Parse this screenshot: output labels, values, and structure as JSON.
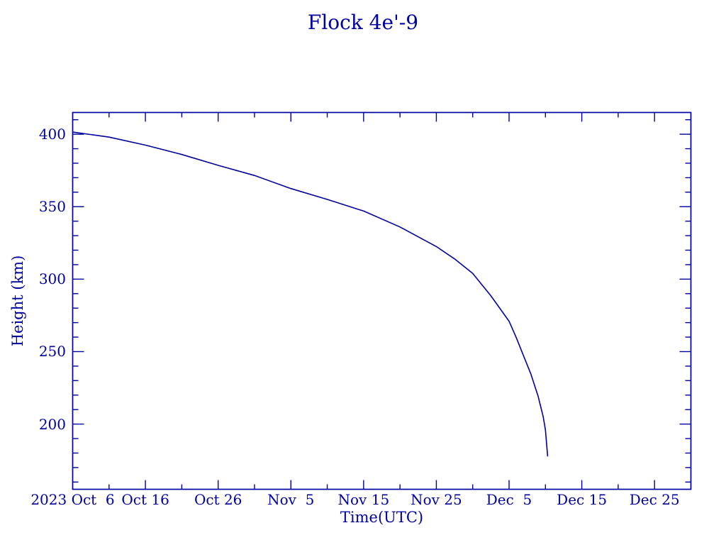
{
  "title": "Flock 4e'-9",
  "colors": {
    "ink": "#0000A0",
    "background": "#ffffff"
  },
  "chart_data": {
    "type": "line",
    "title": "Flock 4e'-9",
    "xlabel": "Time(UTC)",
    "ylabel": "Height (km)",
    "grid": false,
    "legend": false,
    "x_axis": {
      "start_date": "2023 Oct 6",
      "unit": "days since 2023 Oct 6 UTC",
      "range_days": [
        0,
        85
      ],
      "major_ticks": [
        {
          "day": 0,
          "label": "2023 Oct  6"
        },
        {
          "day": 10,
          "label": "Oct 16"
        },
        {
          "day": 20,
          "label": "Oct 26"
        },
        {
          "day": 30,
          "label": "Nov  5"
        },
        {
          "day": 40,
          "label": "Nov 15"
        },
        {
          "day": 50,
          "label": "Nov 25"
        },
        {
          "day": 60,
          "label": "Dec  5"
        },
        {
          "day": 70,
          "label": "Dec 15"
        },
        {
          "day": 80,
          "label": "Dec 25"
        }
      ],
      "minor_tick_days": [
        5,
        15,
        25,
        35,
        45,
        55,
        65,
        75
      ]
    },
    "y_axis": {
      "range": [
        155,
        415
      ],
      "major_ticks": [
        200,
        250,
        300,
        350,
        400
      ],
      "minor_tick_step": 10
    },
    "series": [
      {
        "name": "Flock 4e'-9 orbit height (km)",
        "x_days": [
          0,
          5,
          10,
          15,
          20,
          25,
          30,
          35,
          40,
          45,
          50,
          52.5,
          55,
          57.5,
          60,
          61,
          62,
          63,
          64,
          64.7,
          65,
          65.3
        ],
        "values": [
          401.5,
          398,
          392.5,
          386,
          378.5,
          371.5,
          362.5,
          355,
          347,
          336,
          322.5,
          314,
          304,
          288.5,
          271,
          259.5,
          247,
          234.5,
          219,
          205,
          196,
          178
        ]
      }
    ]
  }
}
